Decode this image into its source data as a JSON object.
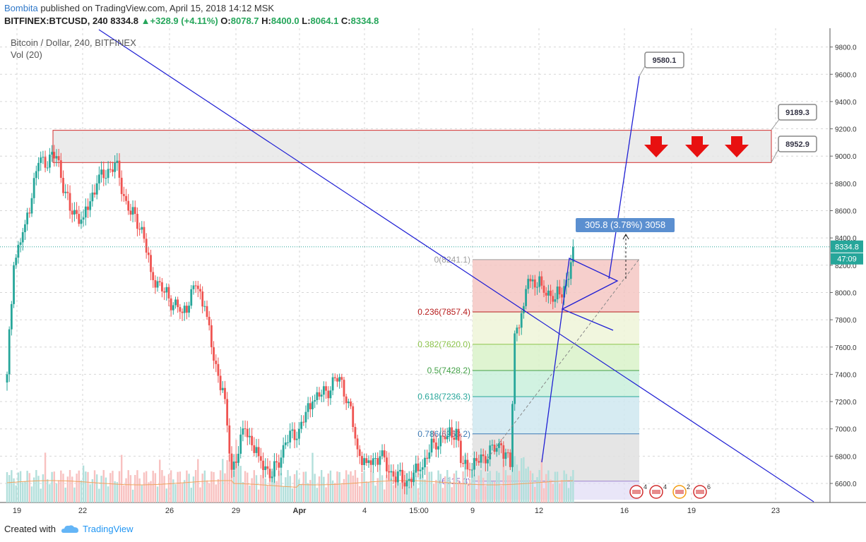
{
  "header": {
    "author": "Bombita",
    "published_text": "published on TradingView.com, April 15, 2018 14:12 MSK",
    "symbol": "BITFINEX:BTCUSD, 240",
    "last": "8334.8",
    "change": "+328.9 (+4.11%)",
    "o_label": "O:",
    "o": "8078.7",
    "h_label": "H:",
    "h": "8400.0",
    "l_label": "L:",
    "l": "8064.1",
    "c_label": "C:",
    "c": "8334.8",
    "up_arrow": "▲"
  },
  "legend": {
    "title": "Bitcoin / Dollar, 240, BITFINEX",
    "vol": "Vol (20)"
  },
  "footer": {
    "created_with": "Created with",
    "brand": "TradingView"
  },
  "colors": {
    "up": "#26a69a",
    "down": "#ef5350",
    "trend": "#1f1fd4",
    "grid": "#e9e9ea"
  },
  "chart_data": {
    "type": "candlestick",
    "title": "Bitcoin / Dollar, 240, BITFINEX",
    "y_ticks": [
      6600,
      6800,
      7000,
      7200,
      7400,
      7600,
      7800,
      8000,
      8200,
      8400,
      8600,
      8800,
      9000,
      9200,
      9400,
      9600,
      9800
    ],
    "ylim": [
      6480,
      9880
    ],
    "x_ticks": [
      "19",
      "22",
      "26",
      "29",
      "Apr",
      "4",
      "15:00",
      "9",
      "12",
      "16",
      "19",
      "23"
    ],
    "last_price_label": "8334.8",
    "countdown_label": "47:09",
    "close_series_keypoints": [
      [
        0,
        7400
      ],
      [
        3,
        8200
      ],
      [
        8,
        8500
      ],
      [
        14,
        8950
      ],
      [
        22,
        9000
      ],
      [
        28,
        8600
      ],
      [
        34,
        8550
      ],
      [
        40,
        8800
      ],
      [
        48,
        8950
      ],
      [
        54,
        8600
      ],
      [
        60,
        8480
      ],
      [
        64,
        8150
      ],
      [
        70,
        8000
      ],
      [
        78,
        7850
      ],
      [
        84,
        8050
      ],
      [
        88,
        7900
      ],
      [
        92,
        7500
      ],
      [
        96,
        7300
      ],
      [
        100,
        6700
      ],
      [
        106,
        7000
      ],
      [
        112,
        6800
      ],
      [
        118,
        6650
      ],
      [
        124,
        6900
      ],
      [
        130,
        7000
      ],
      [
        136,
        7200
      ],
      [
        142,
        7280
      ],
      [
        148,
        7380
      ],
      [
        152,
        7200
      ],
      [
        156,
        6850
      ],
      [
        160,
        6750
      ],
      [
        166,
        6800
      ],
      [
        172,
        6650
      ],
      [
        178,
        6620
      ],
      [
        184,
        6700
      ],
      [
        190,
        6900
      ],
      [
        196,
        6950
      ],
      [
        200,
        7000
      ],
      [
        202,
        6750
      ],
      [
        206,
        6700
      ],
      [
        212,
        6800
      ],
      [
        220,
        6880
      ],
      [
        224,
        6720
      ],
      [
        226,
        7700
      ],
      [
        230,
        7900
      ],
      [
        232,
        8100
      ],
      [
        238,
        8050
      ],
      [
        244,
        7950
      ],
      [
        250,
        8100
      ],
      [
        252,
        8334.8
      ]
    ],
    "fibonacci": [
      {
        "level": "0",
        "price": 8241.1,
        "label": "0(8241.1)"
      },
      {
        "level": "0.236",
        "price": 7857.4,
        "label": "0.236(7857.4)"
      },
      {
        "level": "0.382",
        "price": 7620.0,
        "label": "0.382(7620.0)"
      },
      {
        "level": "0.5",
        "price": 7428.2,
        "label": "0.5(7428.2)"
      },
      {
        "level": "0.618",
        "price": 7236.3,
        "label": "0.618(7236.3)"
      },
      {
        "level": "0.786",
        "price": 6963.2,
        "label": "0.786(6963.2)"
      },
      {
        "level": "1",
        "price": 6615.3,
        "label": "(6615.3)"
      }
    ],
    "resistance_zone": {
      "top": 9189.3,
      "bottom": 8952.9
    },
    "price_callouts": [
      "9580.1",
      "9189.3",
      "8952.9"
    ],
    "measure_label": "305.8 (3.78%) 3058",
    "event_badges": [
      "4",
      "4",
      "2",
      "6"
    ]
  }
}
